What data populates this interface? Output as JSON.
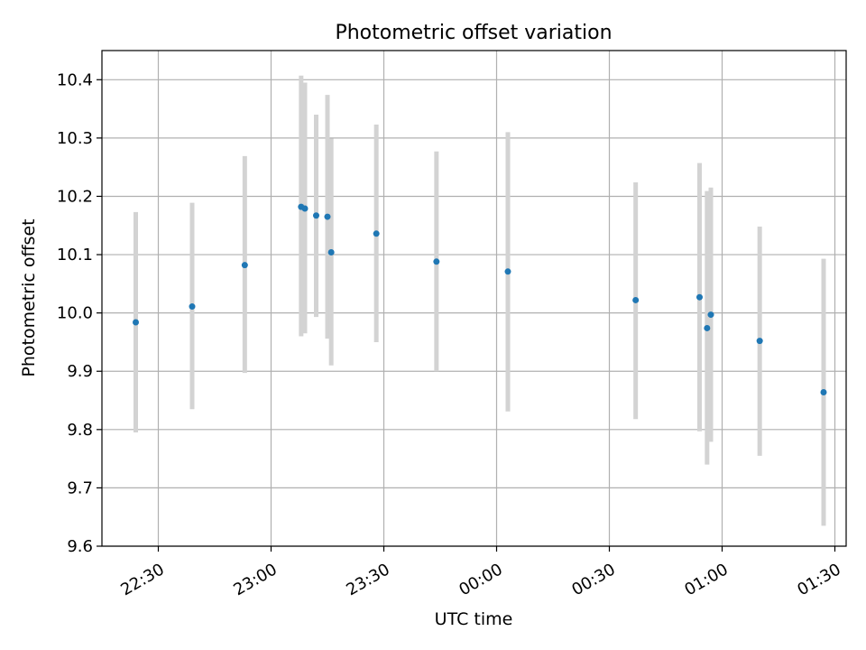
{
  "chart_data": {
    "type": "scatter",
    "title": "Photometric offset variation",
    "xlabel": "UTC time",
    "ylabel": "Photometric offset",
    "x_ticks": [
      "22:30",
      "23:00",
      "23:30",
      "00:00",
      "00:30",
      "01:00",
      "01:30"
    ],
    "y_ticks": [
      "9.6",
      "9.7",
      "9.8",
      "9.9",
      "10.0",
      "10.1",
      "10.2",
      "10.3",
      "10.4"
    ],
    "xlim": [
      "22:15",
      "01:33"
    ],
    "ylim": [
      9.6,
      10.45
    ],
    "grid": true,
    "colors": {
      "points": "#1f77b4",
      "errorbars": "#d3d3d3",
      "grid": "#b0b0b0"
    },
    "points": [
      {
        "time": "22:24",
        "y": 9.984,
        "ylow": 9.795,
        "yhigh": 10.173
      },
      {
        "time": "22:39",
        "y": 10.011,
        "ylow": 9.835,
        "yhigh": 10.189
      },
      {
        "time": "22:53",
        "y": 10.082,
        "ylow": 9.897,
        "yhigh": 10.269
      },
      {
        "time": "23:08",
        "y": 10.182,
        "ylow": 9.96,
        "yhigh": 10.407
      },
      {
        "time": "23:09",
        "y": 10.179,
        "ylow": 9.965,
        "yhigh": 10.395
      },
      {
        "time": "23:12",
        "y": 10.167,
        "ylow": 9.993,
        "yhigh": 10.34
      },
      {
        "time": "23:15",
        "y": 10.165,
        "ylow": 9.956,
        "yhigh": 10.374
      },
      {
        "time": "23:16",
        "y": 10.104,
        "ylow": 9.91,
        "yhigh": 10.299
      },
      {
        "time": "23:28",
        "y": 10.136,
        "ylow": 9.95,
        "yhigh": 10.323
      },
      {
        "time": "23:44",
        "y": 10.088,
        "ylow": 9.9,
        "yhigh": 10.277
      },
      {
        "time": "00:03",
        "y": 10.071,
        "ylow": 9.831,
        "yhigh": 10.31
      },
      {
        "time": "00:37",
        "y": 10.022,
        "ylow": 9.818,
        "yhigh": 10.224
      },
      {
        "time": "00:54",
        "y": 10.027,
        "ylow": 9.797,
        "yhigh": 10.257
      },
      {
        "time": "00:56",
        "y": 9.974,
        "ylow": 9.74,
        "yhigh": 10.209
      },
      {
        "time": "00:57",
        "y": 9.997,
        "ylow": 9.779,
        "yhigh": 10.215
      },
      {
        "time": "01:10",
        "y": 9.952,
        "ylow": 9.755,
        "yhigh": 10.148
      },
      {
        "time": "01:27",
        "y": 9.864,
        "ylow": 9.635,
        "yhigh": 10.093
      }
    ]
  }
}
